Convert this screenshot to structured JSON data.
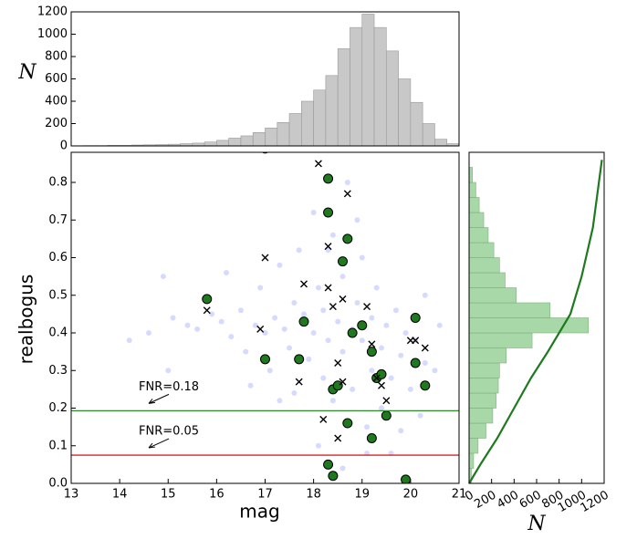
{
  "chart_data": [
    {
      "type": "histogram",
      "ylabel": "N",
      "color": "#c8c8c8",
      "edgecolor": "#999999",
      "bins": [
        13.0,
        13.25,
        13.5,
        13.75,
        14.0,
        14.25,
        14.5,
        14.75,
        15.0,
        15.25,
        15.5,
        15.75,
        16.0,
        16.25,
        16.5,
        16.75,
        17.0,
        17.25,
        17.5,
        17.75,
        18.0,
        18.25,
        18.5,
        18.75,
        19.0,
        19.25,
        19.5,
        19.75,
        20.0,
        20.25,
        20.5,
        20.75,
        21.0
      ],
      "counts": [
        2,
        3,
        3,
        5,
        5,
        8,
        10,
        12,
        15,
        20,
        25,
        35,
        50,
        70,
        90,
        120,
        160,
        210,
        290,
        400,
        500,
        630,
        870,
        1060,
        1180,
        1060,
        850,
        600,
        390,
        200,
        60,
        20
      ],
      "xlim": [
        13,
        21
      ],
      "ylim": [
        0,
        1200
      ],
      "yticks": [
        0,
        200,
        400,
        600,
        800,
        1000,
        1200
      ]
    },
    {
      "type": "scatter",
      "xlabel": "mag",
      "ylabel": "realbogus",
      "xlim": [
        13,
        21
      ],
      "ylim": [
        0,
        0.88
      ],
      "xticks": [
        13,
        14,
        15,
        16,
        17,
        18,
        19,
        20,
        21
      ],
      "yticks": [
        {
          "value": 0,
          "label": "0.0"
        },
        0.1,
        0.2,
        0.3,
        0.4,
        0.5,
        0.6,
        0.7,
        0.8
      ],
      "hlines": [
        {
          "value": 0.193,
          "color": "#2e8b2e",
          "label": "FNR=0.18"
        },
        {
          "value": 0.075,
          "color": "#e02020",
          "label": "FNR=0.05"
        }
      ],
      "series": [
        {
          "marker": "dot",
          "color": "#2030ff",
          "x": [
            14.2,
            14.6,
            14.9,
            15.1,
            15.4,
            15.6,
            15.9,
            16.1,
            16.3,
            16.5,
            16.6,
            16.8,
            16.9,
            17.0,
            17.1,
            17.2,
            17.3,
            17.4,
            17.5,
            17.6,
            17.7,
            17.8,
            17.9,
            18.0,
            18.0,
            18.1,
            18.2,
            18.2,
            18.3,
            18.4,
            18.4,
            18.5,
            18.6,
            18.6,
            18.7,
            18.8,
            18.8,
            18.9,
            19.0,
            19.0,
            19.1,
            19.2,
            19.2,
            19.3,
            19.4,
            19.4,
            19.5,
            19.6,
            19.7,
            19.8,
            19.9,
            20.0,
            20.1,
            20.2,
            20.3,
            20.5,
            17.6,
            18.1,
            18.9,
            19.6,
            20.3,
            16.2,
            17.3,
            18.3,
            19.8,
            15.0,
            16.7,
            18.6,
            19.1,
            20.6
          ],
          "y": [
            0.38,
            0.4,
            0.55,
            0.44,
            0.42,
            0.41,
            0.45,
            0.43,
            0.39,
            0.46,
            0.35,
            0.42,
            0.52,
            0.4,
            0.3,
            0.44,
            0.58,
            0.41,
            0.36,
            0.48,
            0.62,
            0.45,
            0.33,
            0.4,
            0.72,
            0.52,
            0.28,
            0.46,
            0.38,
            0.66,
            0.22,
            0.43,
            0.55,
            0.35,
            0.8,
            0.41,
            0.25,
            0.48,
            0.38,
            0.6,
            0.15,
            0.44,
            0.3,
            0.52,
            0.36,
            0.2,
            0.42,
            0.28,
            0.46,
            0.34,
            0.4,
            0.25,
            0.38,
            0.18,
            0.32,
            0.3,
            0.24,
            0.1,
            0.7,
            0.08,
            0.5,
            0.56,
            0.22,
            0.62,
            0.14,
            0.3,
            0.26,
            0.04,
            0.08,
            0.42
          ]
        },
        {
          "marker": "circle",
          "color": "#1f7a1f",
          "x": [
            15.8,
            17.0,
            17.0,
            17.7,
            17.8,
            18.3,
            18.3,
            18.4,
            18.5,
            18.6,
            18.7,
            18.7,
            18.8,
            19.0,
            19.2,
            19.3,
            19.5,
            19.4,
            19.2,
            18.3,
            18.4,
            19.9,
            20.1,
            20.1,
            20.3
          ],
          "y": [
            0.49,
            0.33,
            0.89,
            0.33,
            0.43,
            0.81,
            0.72,
            0.25,
            0.26,
            0.59,
            0.65,
            0.16,
            0.4,
            0.42,
            0.35,
            0.28,
            0.18,
            0.29,
            0.12,
            0.05,
            0.02,
            0.01,
            0.44,
            0.32,
            0.26
          ]
        },
        {
          "marker": "cross",
          "color": "#000000",
          "x": [
            15.8,
            17.0,
            16.9,
            17.8,
            17.7,
            18.1,
            18.3,
            18.3,
            18.4,
            18.5,
            18.6,
            18.7,
            18.6,
            18.2,
            18.5,
            19.1,
            19.2,
            19.3,
            19.4,
            19.5,
            20.1,
            20.0,
            20.3
          ],
          "y": [
            0.46,
            0.6,
            0.41,
            0.53,
            0.27,
            0.85,
            0.63,
            0.52,
            0.47,
            0.32,
            0.49,
            0.77,
            0.27,
            0.17,
            0.12,
            0.47,
            0.37,
            0.28,
            0.26,
            0.22,
            0.38,
            0.38,
            0.36
          ]
        }
      ]
    },
    {
      "type": "hhistogram",
      "xlabel": "N",
      "color": "#a8d8a8",
      "edgecolor": "#7fb07f",
      "linecolor": "#1f7a1f",
      "bins": [
        0,
        0.04,
        0.08,
        0.12,
        0.16,
        0.2,
        0.24,
        0.28,
        0.32,
        0.36,
        0.4,
        0.44,
        0.48,
        0.52,
        0.56,
        0.6,
        0.64,
        0.68,
        0.72,
        0.76,
        0.8,
        0.84
      ],
      "counts": [
        20,
        40,
        80,
        150,
        210,
        240,
        260,
        270,
        330,
        560,
        1060,
        720,
        420,
        320,
        270,
        220,
        170,
        130,
        90,
        60,
        30
      ],
      "curve": {
        "x": [
          0,
          100,
          250,
          400,
          550,
          700,
          800,
          900,
          1000,
          1100,
          1180
        ],
        "y": [
          0,
          0.05,
          0.12,
          0.2,
          0.28,
          0.35,
          0.4,
          0.45,
          0.55,
          0.68,
          0.86
        ]
      },
      "xlim": [
        0,
        1200
      ],
      "ylim": [
        0,
        0.88
      ],
      "xticks": [
        0,
        200,
        400,
        600,
        800,
        1000,
        1200
      ]
    }
  ]
}
